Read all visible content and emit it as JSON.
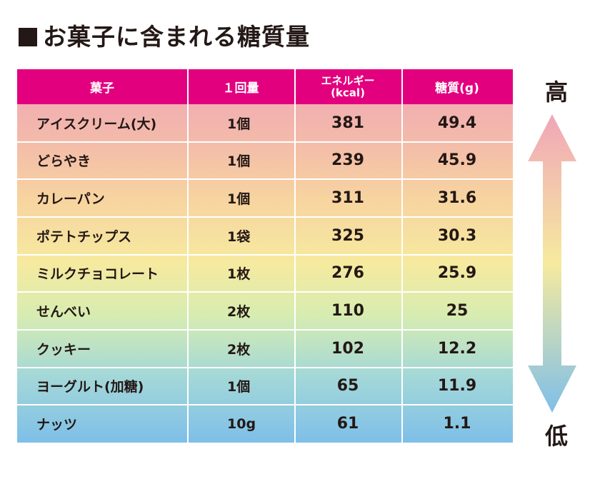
{
  "title": "お菓子に含まれる糖質量",
  "table": {
    "headers": {
      "snack": "菓子",
      "amount": "１回量",
      "energy_line1": "エネルギー",
      "energy_line2": "(kcal)",
      "sugar": "糖質(g)"
    },
    "rows": [
      {
        "name": "アイスクリーム(大)",
        "amount": "1個",
        "energy": "381",
        "sugar": "49.4"
      },
      {
        "name": "どらやき",
        "amount": "1個",
        "energy": "239",
        "sugar": "45.9"
      },
      {
        "name": "カレーパン",
        "amount": "1個",
        "energy": "311",
        "sugar": "31.6"
      },
      {
        "name": "ポテトチップス",
        "amount": "1袋",
        "energy": "325",
        "sugar": "30.3"
      },
      {
        "name": "ミルクチョコレート",
        "amount": "1枚",
        "energy": "276",
        "sugar": "25.9"
      },
      {
        "name": "せんべい",
        "amount": "2枚",
        "energy": "110",
        "sugar": "25"
      },
      {
        "name": "クッキー",
        "amount": "2枚",
        "energy": "102",
        "sugar": "12.2"
      },
      {
        "name": "ヨーグルト(加糖)",
        "amount": "1個",
        "energy": "65",
        "sugar": "11.9"
      },
      {
        "name": "ナッツ",
        "amount": "10g",
        "energy": "61",
        "sugar": "1.1"
      }
    ]
  },
  "scale": {
    "high": "高",
    "low": "低"
  },
  "colors": {
    "header": "#e3007f",
    "arrow_top": "#f0a6b8",
    "arrow_mid": "#f6ea9f",
    "arrow_bottom": "#7ebfe8"
  },
  "icons": {
    "square": "black-square-icon",
    "arrow": "double-headed-arrow-icon"
  }
}
